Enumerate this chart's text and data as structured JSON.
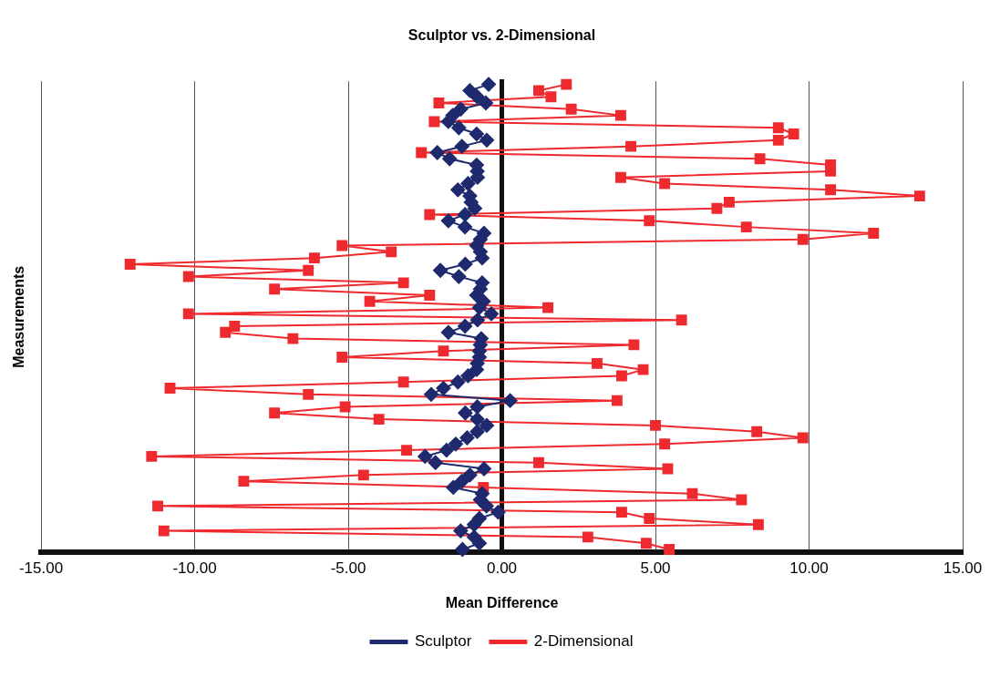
{
  "chart_data": {
    "type": "line",
    "orientation": "horizontal",
    "title": "Sculptor vs. 2-Dimensional",
    "xlabel": "Mean Difference",
    "ylabel": "Measurements",
    "categories": [
      null,
      null,
      null,
      null,
      null,
      null,
      null,
      null,
      null,
      null,
      null,
      null,
      null,
      null,
      null,
      null,
      null,
      null,
      null,
      null,
      null,
      null,
      null,
      null,
      null,
      null,
      null,
      null,
      null,
      null,
      null,
      null,
      null,
      null,
      null,
      null,
      null,
      null,
      null,
      null,
      null,
      null,
      null,
      null,
      null,
      null,
      null,
      null,
      null,
      null,
      null,
      null,
      null,
      null,
      null,
      null,
      null,
      null,
      null,
      null,
      null,
      null,
      null,
      null,
      null,
      null,
      null,
      null,
      null,
      null,
      null,
      null,
      null,
      null,
      null,
      null
    ],
    "xlim": [
      -15,
      15
    ],
    "xticks": [
      {
        "value": -15,
        "label": "-15.00"
      },
      {
        "value": -10,
        "label": "-10.00"
      },
      {
        "value": -5,
        "label": "-5.00"
      },
      {
        "value": 0,
        "label": "0.00"
      },
      {
        "value": 5,
        "label": "5.00"
      },
      {
        "value": 10,
        "label": "10.00"
      },
      {
        "value": 15,
        "label": "15.00"
      }
    ],
    "tick_labels": "x",
    "grid": "x",
    "legend": "bottom",
    "series": [
      {
        "name": "Sculptor",
        "color": "#1f2a6e",
        "marker": "diamond",
        "values": [
          -0.43,
          -1.04,
          -0.8,
          -0.52,
          -1.34,
          -1.6,
          -1.74,
          -1.4,
          -0.82,
          -0.49,
          -1.3,
          -2.1,
          -1.7,
          -0.82,
          -0.8,
          -0.79,
          -1.1,
          -1.43,
          -1.04,
          -1,
          -0.88,
          -1.2,
          -1.74,
          -1.2,
          -0.58,
          -0.7,
          -0.82,
          -0.7,
          -0.64,
          -1.19,
          -2,
          -1.4,
          -0.64,
          -0.7,
          -0.82,
          -0.6,
          -0.73,
          -0.34,
          -0.79,
          -1.2,
          -1.74,
          -0.67,
          -0.7,
          -0.73,
          -0.73,
          -0.8,
          -0.82,
          -1.1,
          -1.43,
          -1.9,
          -2.3,
          0.27,
          -0.8,
          -1.19,
          -0.8,
          -0.49,
          -0.8,
          -1.13,
          -1.5,
          -1.8,
          -2.5,
          -2.16,
          -0.58,
          -1.04,
          -1.3,
          -1.58,
          -0.64,
          -0.7,
          -0.5,
          -0.12,
          -0.73,
          -0.9,
          -1.34,
          -0.9,
          -0.73,
          -1.28
        ]
      },
      {
        "name": "2-Dimensional",
        "color": "#ee2a2e",
        "marker": "square",
        "values": [
          2.1,
          1.2,
          1.6,
          -2.05,
          2.26,
          3.87,
          -2.2,
          9,
          9.5,
          9,
          4.2,
          -2.62,
          8.4,
          10.7,
          10.7,
          3.87,
          5.3,
          10.7,
          13.6,
          7.4,
          7,
          -2.35,
          4.8,
          7.96,
          12.1,
          9.8,
          -5.2,
          -3.6,
          -6.1,
          -12.1,
          -6.3,
          -10.2,
          -3.2,
          -7.4,
          -2.35,
          -4.3,
          1.5,
          -10.2,
          5.85,
          -8.7,
          -9,
          -6.8,
          4.3,
          -1.9,
          -5.2,
          3.1,
          4.6,
          3.9,
          -3.2,
          -10.8,
          -6.3,
          3.75,
          -5.1,
          -7.4,
          -4,
          5,
          8.3,
          9.8,
          5.3,
          -3.1,
          -11.4,
          1.2,
          5.4,
          -4.5,
          -8.4,
          -0.6,
          6.2,
          7.8,
          -11.2,
          3.9,
          4.8,
          8.35,
          -11,
          2.8,
          4.7,
          5.45
        ]
      }
    ]
  }
}
